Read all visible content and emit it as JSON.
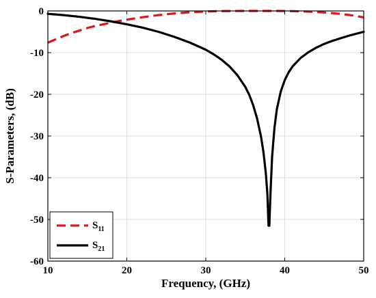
{
  "chart_data": {
    "type": "line",
    "xlabel": "Frequency, (GHz)",
    "ylabel": "S-Parameters, (dB)",
    "xlim": [
      10,
      50
    ],
    "ylim": [
      -60,
      0
    ],
    "xticks": [
      10,
      20,
      30,
      40,
      50
    ],
    "yticks": [
      0,
      -10,
      -20,
      -30,
      -40,
      -50,
      -60
    ],
    "grid": true,
    "legend_position": "bottom-left",
    "series": [
      {
        "name": "S11",
        "legend_base": "S",
        "legend_sub": "11",
        "color": "#e0161c",
        "style": "dashed",
        "x": [
          10,
          11,
          12,
          13,
          14,
          15,
          16,
          17,
          18,
          19,
          20,
          21,
          22,
          23,
          24,
          25,
          26,
          27,
          28,
          29,
          30,
          31,
          32,
          33,
          34,
          35,
          36,
          37,
          38,
          39,
          40,
          41,
          42,
          43,
          44,
          45,
          46,
          47,
          48,
          49,
          50
        ],
        "y": [
          -7.6,
          -6.8,
          -6.0,
          -5.3,
          -4.7,
          -4.1,
          -3.6,
          -3.2,
          -2.8,
          -2.4,
          -2.1,
          -1.8,
          -1.5,
          -1.25,
          -1.0,
          -0.8,
          -0.6,
          -0.45,
          -0.32,
          -0.22,
          -0.14,
          -0.08,
          -0.04,
          -0.02,
          -0.01,
          0.0,
          0.0,
          0.0,
          0.0,
          0.0,
          -0.02,
          -0.05,
          -0.1,
          -0.17,
          -0.26,
          -0.38,
          -0.52,
          -0.7,
          -0.92,
          -1.2,
          -1.55
        ]
      },
      {
        "name": "S21",
        "legend_base": "S",
        "legend_sub": "21",
        "color": "#000000",
        "style": "solid",
        "x": [
          10,
          12,
          14,
          16,
          18,
          20,
          22,
          24,
          26,
          28,
          30,
          31,
          32,
          33,
          34,
          35,
          35.5,
          36,
          36.5,
          37,
          37.3,
          37.6,
          37.8,
          37.95,
          38.05,
          38.2,
          38.4,
          38.7,
          39,
          39.5,
          40,
          40.5,
          41,
          42,
          43,
          44,
          45,
          46,
          47,
          48,
          49,
          50
        ],
        "y": [
          -0.7,
          -1.0,
          -1.4,
          -1.9,
          -2.5,
          -3.2,
          -4.0,
          -5.0,
          -6.2,
          -7.6,
          -9.3,
          -10.4,
          -11.7,
          -13.3,
          -15.4,
          -18.2,
          -20.1,
          -22.6,
          -25.8,
          -30.2,
          -33.8,
          -38.8,
          -43.8,
          -51.5,
          -51.5,
          -43.5,
          -35.0,
          -28.0,
          -23.6,
          -19.3,
          -16.6,
          -14.7,
          -13.3,
          -11.3,
          -9.9,
          -8.8,
          -7.9,
          -7.2,
          -6.6,
          -6.0,
          -5.5,
          -5.0
        ]
      }
    ]
  }
}
